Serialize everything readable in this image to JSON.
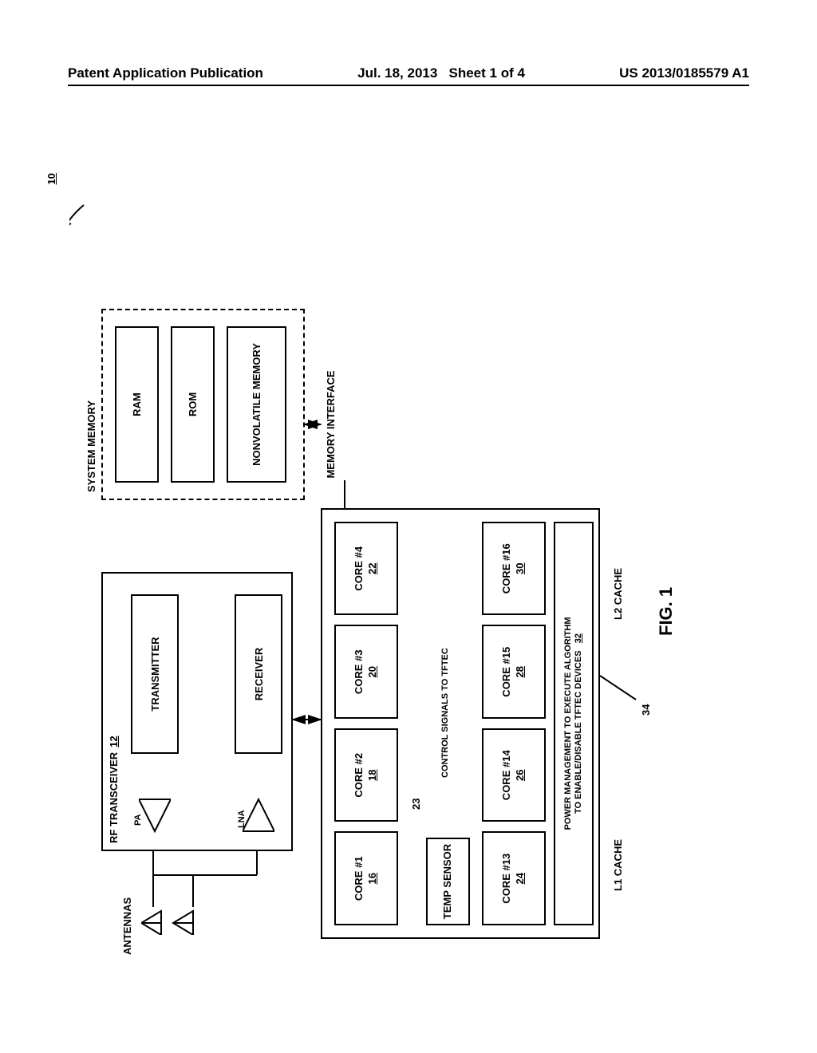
{
  "header": {
    "left": "Patent Application Publication",
    "center_date": "Jul. 18, 2013",
    "center_sheet": "Sheet 1 of 4",
    "right": "US 2013/0185579 A1"
  },
  "figure_label": "FIG. 1",
  "ref_10": "10",
  "ref_12": "12",
  "ref_23": "23",
  "ref_34": "34",
  "antennas_label": "ANTENNAS",
  "rf_transceiver": "RF TRANSCEIVER",
  "transmitter": "TRANSMITTER",
  "receiver": "RECEIVER",
  "pa": "PA",
  "lna": "LNA",
  "system_memory": "SYSTEM MEMORY",
  "ram": "RAM",
  "rom": "ROM",
  "nonvolatile_memory": "NONVOLATILE MEMORY",
  "memory_interface": "MEMORY INTERFACE",
  "control_signals": "CONTROL SIGNALS TO TFTEC",
  "temp_sensor": "TEMP SENSOR",
  "power_mgmt_line1": "POWER MANAGEMENT TO EXECUTE ALGORITHM",
  "power_mgmt_line2": "TO ENABLE/DISABLE TFTEC DEVICES",
  "power_mgmt_ref": "32",
  "l1_cache": "L1 CACHE",
  "l2_cache": "L2 CACHE",
  "cores_row1": [
    {
      "name": "CORE #1",
      "ref": "16"
    },
    {
      "name": "CORE #2",
      "ref": "18"
    },
    {
      "name": "CORE #3",
      "ref": "20"
    },
    {
      "name": "CORE #4",
      "ref": "22"
    }
  ],
  "cores_row2": [
    {
      "name": "CORE #13",
      "ref": "24"
    },
    {
      "name": "CORE #14",
      "ref": "26"
    },
    {
      "name": "CORE #15",
      "ref": "28"
    },
    {
      "name": "CORE #16",
      "ref": "30"
    }
  ],
  "colors": {
    "line": "#000000",
    "bg": "#ffffff"
  },
  "layout": {
    "diagram_w": 760,
    "diagram_h": 1000
  }
}
